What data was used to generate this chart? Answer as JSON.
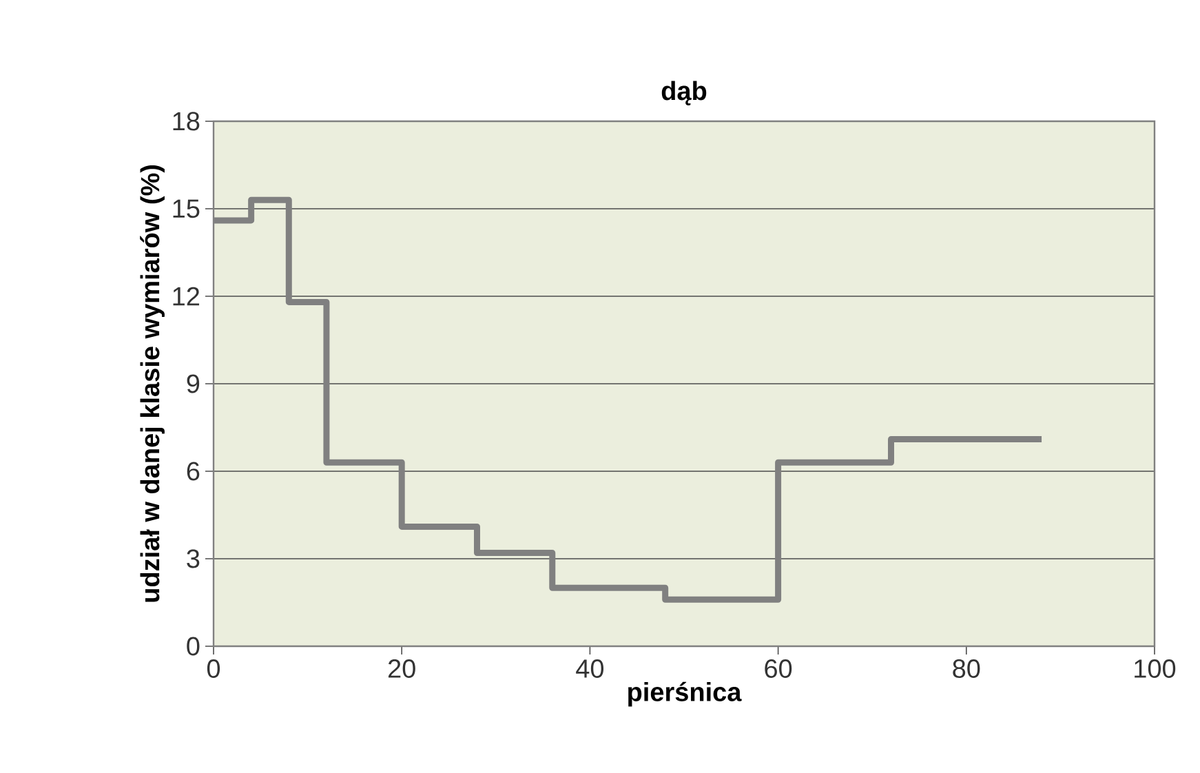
{
  "chart_data": {
    "type": "step",
    "title": "dąb",
    "xlabel": "pierśnica",
    "ylabel": "udział w danej klasie wymiarów (%)",
    "x": [
      0,
      4,
      8,
      12,
      20,
      28,
      36,
      48,
      60,
      72,
      88
    ],
    "series": [
      {
        "color": "#808080",
        "values": [
          14.6,
          15.3,
          11.8,
          6.3,
          4.1,
          3.2,
          2.0,
          1.6,
          6.3,
          7.1,
          7.1
        ]
      }
    ],
    "xlim": [
      0,
      100
    ],
    "xticks": [
      0,
      20,
      40,
      60,
      80,
      100
    ],
    "ylim": [
      0,
      18
    ],
    "yticks": [
      0,
      3,
      6,
      9,
      12,
      15,
      18
    ],
    "grid": "y"
  }
}
